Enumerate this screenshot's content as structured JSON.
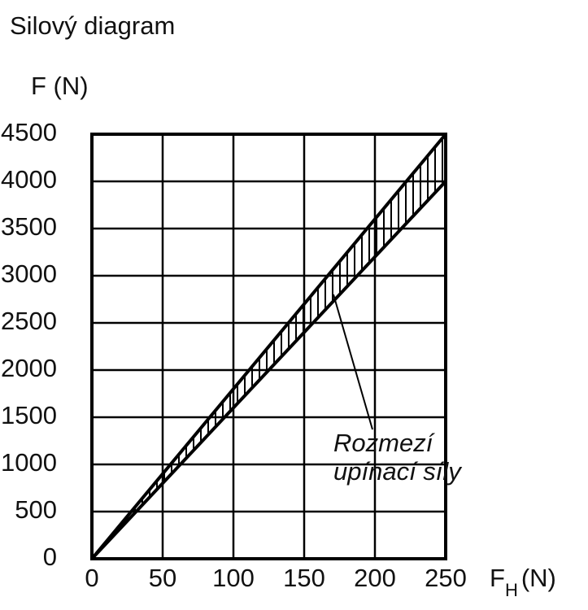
{
  "chart_data": {
    "type": "line",
    "title": "Silový diagram",
    "ylabel": "F (N)",
    "xlabel": "F",
    "xlabel_subscript": "H",
    "xlabel_unit": "(N)",
    "annotation": [
      "Rozmezí",
      "upínací síly"
    ],
    "x": [
      0,
      250
    ],
    "series": [
      {
        "color": "#000000",
        "values": [
          0,
          4500
        ]
      },
      {
        "color": "#000000",
        "values": [
          0,
          4000
        ]
      }
    ],
    "xlim": [
      0,
      250
    ],
    "xticks": [
      0,
      50,
      100,
      150,
      200,
      250
    ],
    "ylim": [
      0,
      4500
    ],
    "yticks": [
      0,
      500,
      1000,
      1500,
      2000,
      2500,
      3000,
      3500,
      4000,
      4500
    ],
    "grid": true
  }
}
